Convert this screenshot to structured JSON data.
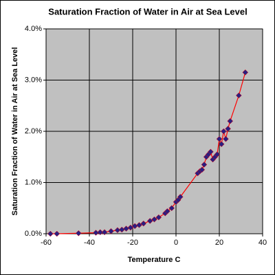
{
  "chart_data": {
    "type": "scatter",
    "title": "Saturation Fraction of Water in Air at Sea Level",
    "x_label": "Temperature C",
    "y_label": "Saturation Fraction of Water in Air at Sea Level",
    "xlim": [
      -60,
      40
    ],
    "xticks": [
      -60,
      -40,
      -20,
      0,
      20,
      40
    ],
    "ylim": [
      0,
      4
    ],
    "yticks": [
      {
        "value": 0,
        "label": "0.0%"
      },
      {
        "value": 1,
        "label": "1.0%"
      },
      {
        "value": 2,
        "label": "2.0%"
      },
      {
        "value": 3,
        "label": "3.0%"
      },
      {
        "value": 4,
        "label": "4.0%"
      }
    ],
    "grid": true,
    "plot_background": "#c0c0c0",
    "series": [
      {
        "marker_color": "#2a1f80",
        "line_color": "#ff0000",
        "x": [
          -58,
          -55,
          -45,
          -37,
          -35,
          -33,
          -30,
          -27,
          -25,
          -23,
          -21,
          -19,
          -17,
          -15,
          -12,
          -10,
          -8,
          -5,
          -4,
          -2,
          0,
          1,
          2,
          10,
          11,
          12,
          13,
          14,
          15,
          16,
          17,
          18,
          19,
          20,
          21,
          22,
          23,
          24,
          25,
          29,
          32
        ],
        "values": [
          0.0,
          0.0,
          0.01,
          0.02,
          0.03,
          0.03,
          0.05,
          0.07,
          0.08,
          0.1,
          0.12,
          0.15,
          0.17,
          0.2,
          0.25,
          0.28,
          0.32,
          0.4,
          0.44,
          0.5,
          0.62,
          0.66,
          0.72,
          1.18,
          1.22,
          1.25,
          1.35,
          1.5,
          1.55,
          1.6,
          1.45,
          1.5,
          1.55,
          1.85,
          1.75,
          2.0,
          1.85,
          2.05,
          2.2,
          2.7,
          3.15
        ]
      }
    ]
  }
}
